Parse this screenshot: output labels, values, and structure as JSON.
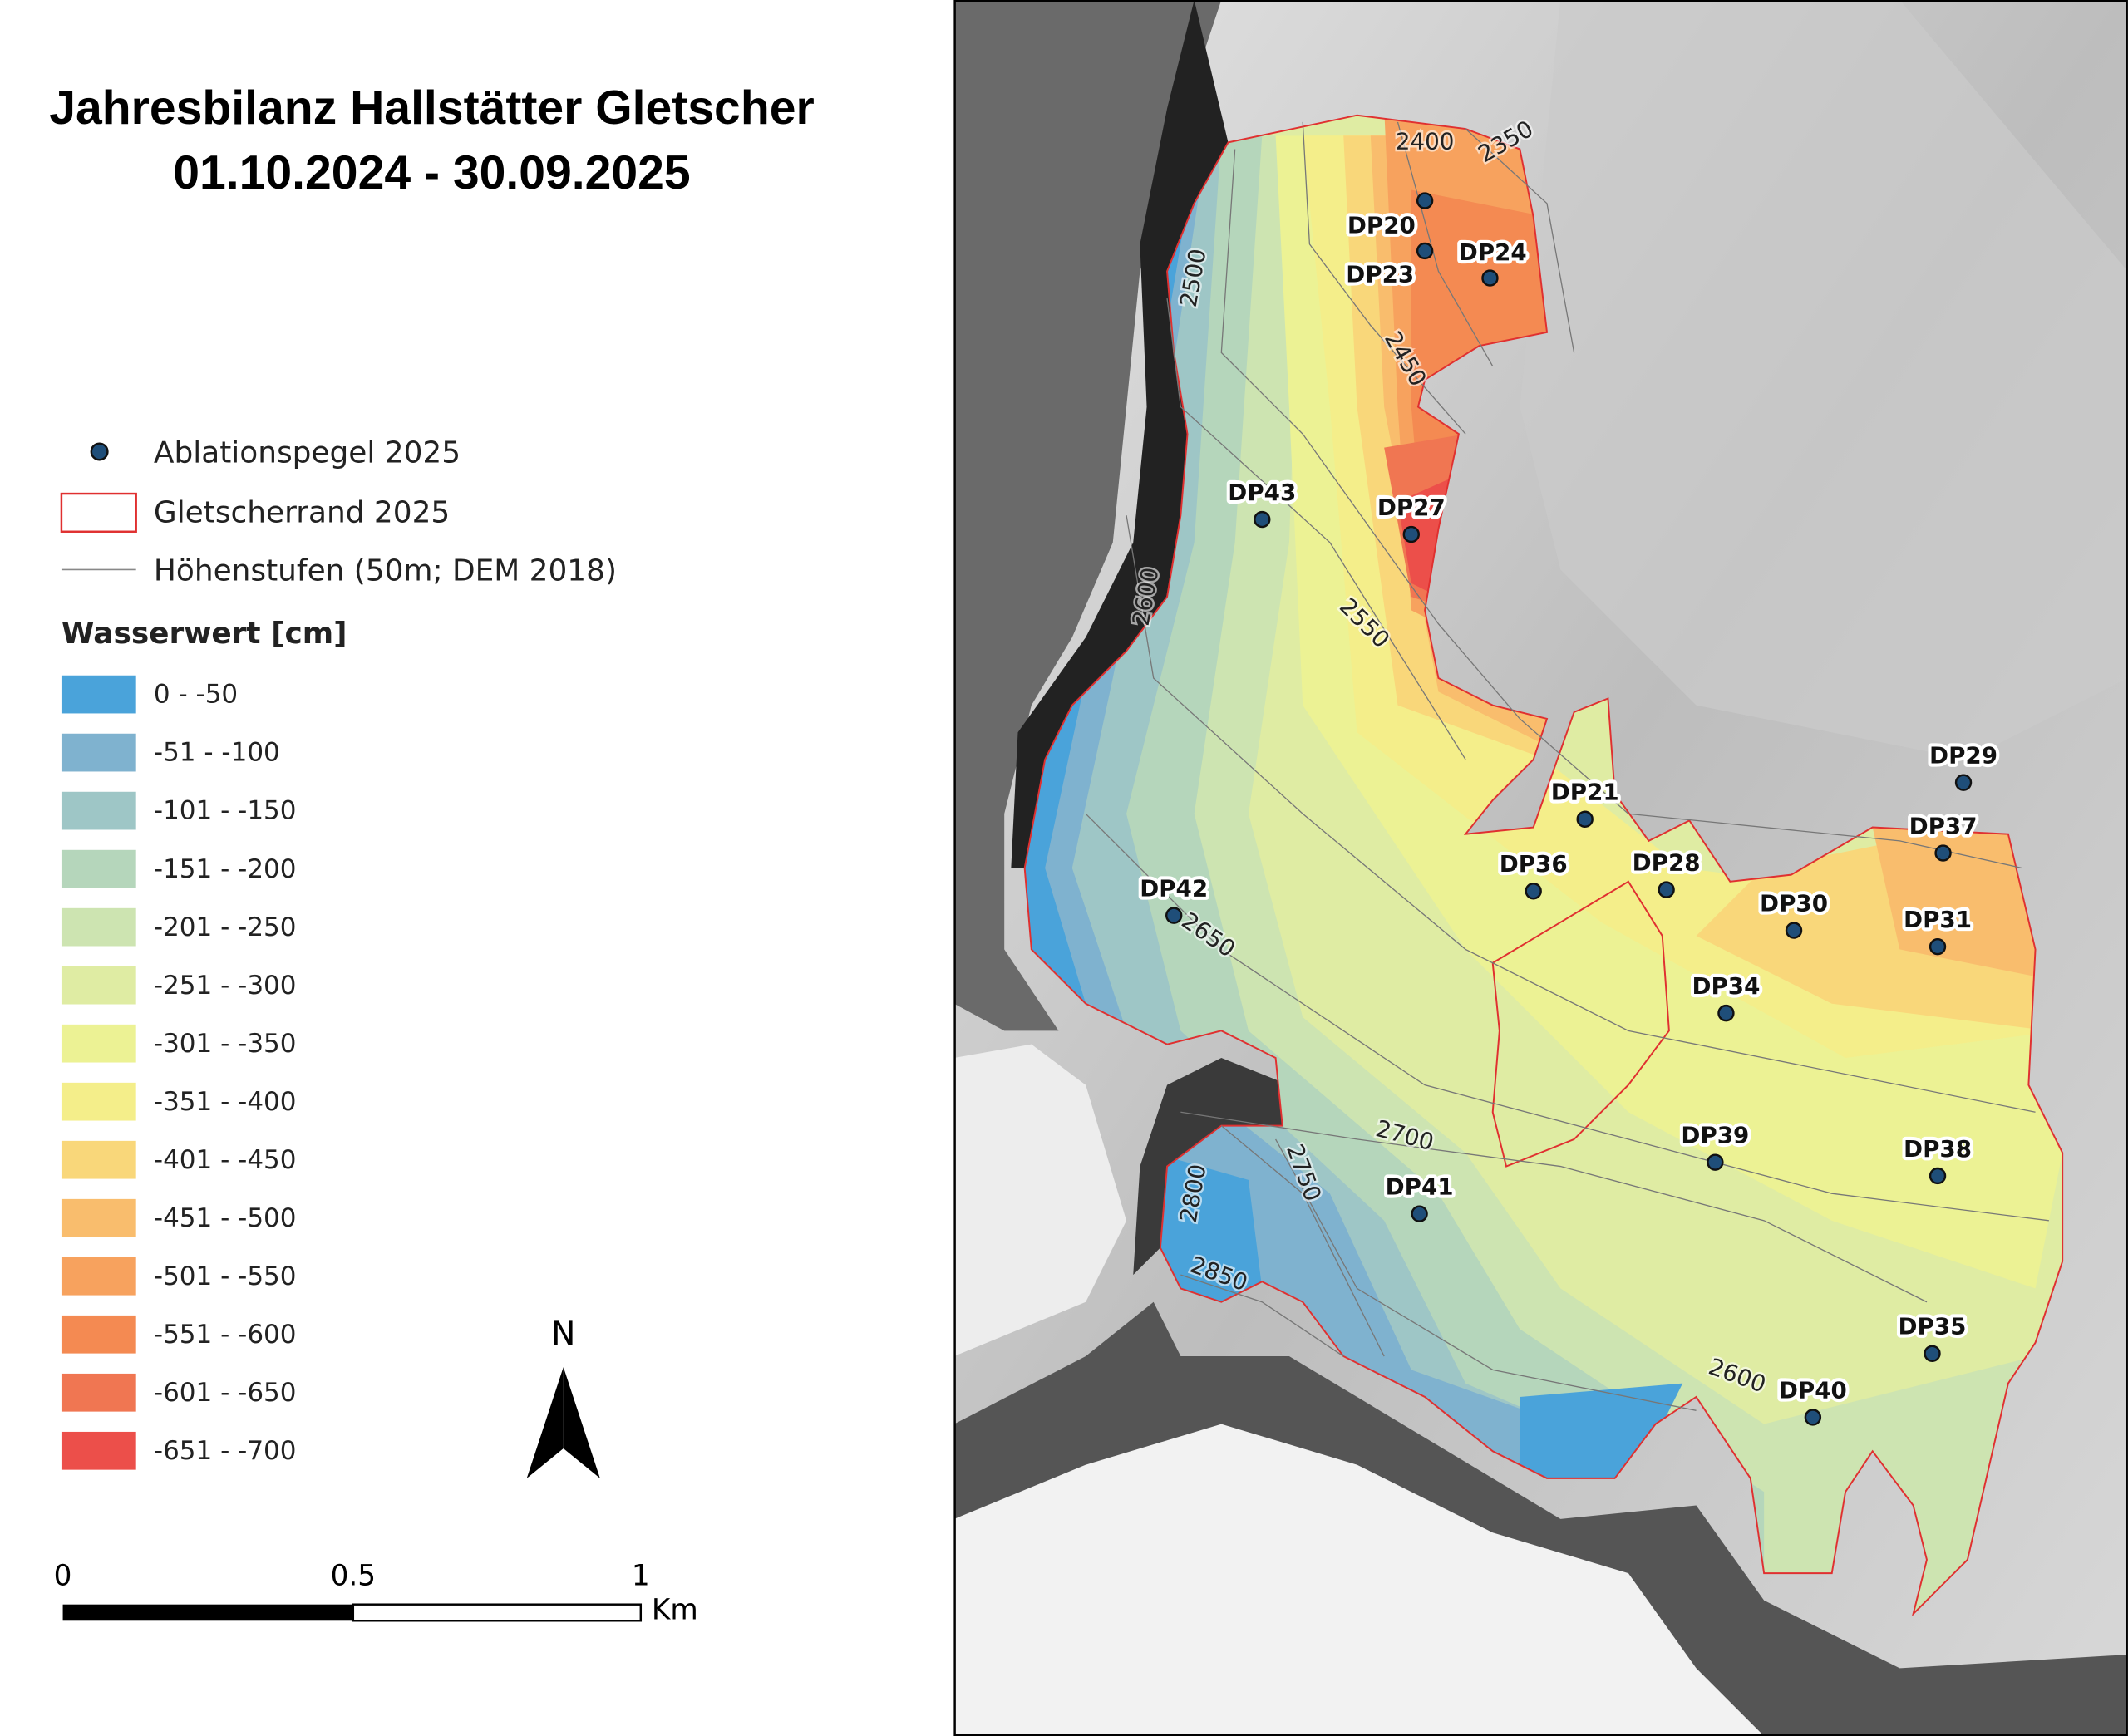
{
  "title": [
    "Jahresbilanz Hallstätter Gletscher",
    "01.10.2024 - 30.09.2025"
  ],
  "legend": {
    "point": "Ablationspegel 2025",
    "outline": "Gletscherrand 2025",
    "contour": "Höhenstufen (50m; DEM 2018)",
    "class_title": "Wasserwert [cm]",
    "classes": [
      {
        "label": "0 -  -50",
        "color": "#4aa3da"
      },
      {
        "label": "-51 -  -100",
        "color": "#7fb2cf"
      },
      {
        "label": "-101 -  -150",
        "color": "#9ec6c6"
      },
      {
        "label": "-151 -  -200",
        "color": "#b5d6bb"
      },
      {
        "label": "-201 -  -250",
        "color": "#cde4b1"
      },
      {
        "label": "-251 -  -300",
        "color": "#dfeca3"
      },
      {
        "label": "-301 -  -350",
        "color": "#ecf294"
      },
      {
        "label": "-351 -  -400",
        "color": "#f4ee8a"
      },
      {
        "label": "-401 -  -450",
        "color": "#f9d77a"
      },
      {
        "label": "-451 -  -500",
        "color": "#f9bd6d"
      },
      {
        "label": "-501 -  -550",
        "color": "#f7a25e"
      },
      {
        "label": "-551 -  -600",
        "color": "#f48a52"
      },
      {
        "label": "-601 -  -650",
        "color": "#f07652"
      },
      {
        "label": "-651 -  -700",
        "color": "#ec4f4a"
      }
    ]
  },
  "points": [
    "DP20",
    "DP23",
    "DP24",
    "DP43",
    "DP27",
    "DP21",
    "DP36",
    "DP28",
    "DP29",
    "DP37",
    "DP30",
    "DP31",
    "DP42",
    "DP34",
    "DP39",
    "DP38",
    "DP41",
    "DP35",
    "DP40"
  ],
  "contour_labels": [
    2350,
    2400,
    2500,
    2450,
    2600,
    2550,
    2650,
    2700,
    2750,
    2800,
    2850,
    2600
  ],
  "north": "N",
  "scale": {
    "labels": [
      "0",
      "0.5",
      "1"
    ],
    "unit": "Km"
  }
}
